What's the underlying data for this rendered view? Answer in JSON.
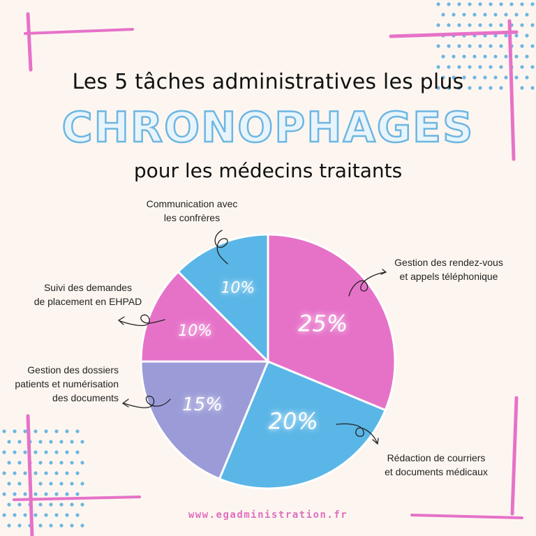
{
  "title": {
    "line1": "Les 5 tâches administratives les plus",
    "line2": "CHRONOPHAGES",
    "line3": "pour les médecins traitants"
  },
  "colors": {
    "background": "#fdf6f0",
    "pink": "#e672c8",
    "blue": "#5ab6e6",
    "lavender": "#9b9bd8",
    "accent_pink": "#e06fbf",
    "dots_blue": "#6db6e2"
  },
  "chart_data": {
    "type": "pie",
    "slices": [
      {
        "label": "Gestion des rendez-vous et appels téléphonique",
        "value": 25,
        "value_label": "25%",
        "color": "#e672c8"
      },
      {
        "label": "Rédaction de courriers et documents médicaux",
        "value": 20,
        "value_label": "20%",
        "color": "#5ab6e6"
      },
      {
        "label": "Gestion des dossiers patients et numérisation des documents",
        "value": 15,
        "value_label": "15%",
        "color": "#9b9bd8"
      },
      {
        "label": "Suivi des demandes de placement en EHPAD",
        "value": 10,
        "value_label": "10%",
        "color": "#e672c8"
      },
      {
        "label": "Communication avec les confrères",
        "value": 10,
        "value_label": "10%",
        "color": "#5ab6e6"
      }
    ]
  },
  "labels": {
    "rdv": [
      "Gestion des rendez-vous",
      "et appels téléphonique"
    ],
    "courriers": [
      "Rédaction de courriers",
      "et documents médicaux"
    ],
    "dossiers": [
      "Gestion des dossiers",
      "patients et numérisation",
      "des documents"
    ],
    "ehpad": [
      "Suivi des demandes",
      "de placement en EHPAD"
    ],
    "communication": [
      "Communication avec",
      "les confrères"
    ]
  },
  "footer": "www.egadministration.fr"
}
